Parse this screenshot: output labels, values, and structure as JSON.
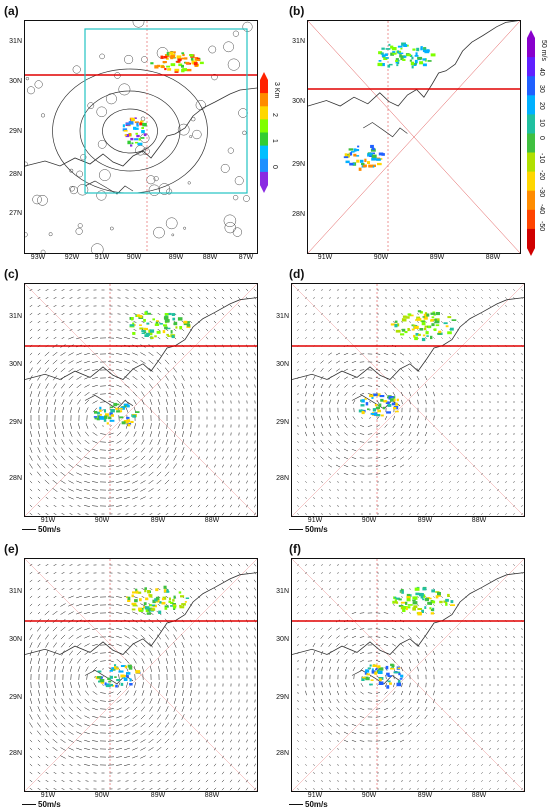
{
  "panels": [
    {
      "id": "a",
      "letter": "(a)",
      "type": "reflectivity",
      "lat": [
        "31N",
        "30N",
        "29N",
        "28N",
        "27N"
      ],
      "lon": [
        "93W",
        "92W",
        "91W",
        "90W",
        "89W",
        "88W",
        "87W"
      ]
    },
    {
      "id": "b",
      "letter": "(b)",
      "type": "radial",
      "lat": [
        "31N",
        "30N",
        "29N",
        "28N"
      ],
      "lon": [
        "91W",
        "90W",
        "89W",
        "88W"
      ]
    },
    {
      "id": "c",
      "letter": "(c)",
      "type": "wind",
      "lat": [
        "31N",
        "30N",
        "29N",
        "28N"
      ],
      "lon": [
        "91W",
        "90W",
        "89W",
        "88W"
      ],
      "scale": "50",
      "unit": "m/s"
    },
    {
      "id": "d",
      "letter": "(d)",
      "type": "wind",
      "lat": [
        "31N",
        "30N",
        "29N",
        "28N"
      ],
      "lon": [
        "91W",
        "90W",
        "89W",
        "88W"
      ],
      "scale": "50",
      "unit": "m/s"
    },
    {
      "id": "e",
      "letter": "(e)",
      "type": "wind",
      "lat": [
        "31N",
        "30N",
        "29N",
        "28N"
      ],
      "lon": [
        "91W",
        "90W",
        "89W",
        "88W"
      ],
      "scale": "50",
      "unit": "m/s"
    },
    {
      "id": "f",
      "letter": "(f)",
      "type": "wind",
      "lat": [
        "31N",
        "30N",
        "29N",
        "28N"
      ],
      "lon": [
        "91W",
        "90W",
        "89W",
        "88W"
      ],
      "scale": "50",
      "unit": "m/s"
    }
  ],
  "colorbar_a": {
    "unit": "3 Km",
    "labels": [
      "0",
      "1",
      "2"
    ],
    "colors": [
      "#8a2be2",
      "#1e90ff",
      "#00bfff",
      "#32cd32",
      "#7fff00",
      "#ffd700",
      "#ff8c00",
      "#ff2200"
    ]
  },
  "colorbar_b": {
    "unit": "50 m/s",
    "labels": [
      "40",
      "30",
      "20",
      "10",
      "0",
      "-10",
      "-20",
      "-30",
      "-40",
      "-50"
    ],
    "colors": [
      "#d00000",
      "#ff4400",
      "#ff8c00",
      "#ffd700",
      "#b0e000",
      "#40c040",
      "#20c0a0",
      "#00b0ff",
      "#2060ff",
      "#6020ff",
      "#8800cc"
    ]
  },
  "colors": {
    "radar_box": "#22c3c3",
    "radar_ray": "#e05050",
    "state_line": "#e00000",
    "coast": "#333333"
  }
}
